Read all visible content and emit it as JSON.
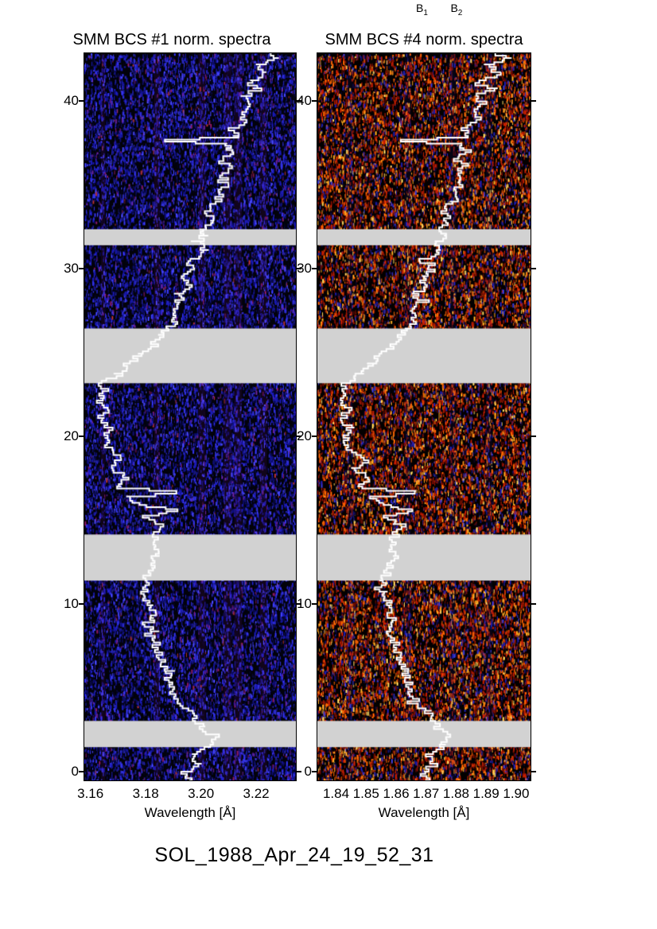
{
  "figure": {
    "caption": "SOL_1988_Apr_24_19_52_31",
    "background": "#ffffff",
    "gap_color": "#d2d2d2",
    "trace_color": "#ffffff"
  },
  "chart_data": [
    {
      "type": "heatmap",
      "title": "SMM BCS #1 norm. spectra",
      "xlabel": "Wavelength [Å]",
      "xlim": [
        3.1575,
        3.2335
      ],
      "ylim": [
        -0.38,
        42.88
      ],
      "xtick_labels": [
        "3.16",
        "3.18",
        "3.20",
        "3.22"
      ],
      "xtick_values": [
        3.16,
        3.18,
        3.2,
        3.22
      ],
      "ytick_labels": [
        "0",
        "10",
        "20",
        "30",
        "40"
      ],
      "ytick_values": [
        0,
        10,
        20,
        30,
        40
      ],
      "data_gaps": [
        [
          1.6,
          3.16
        ],
        [
          11.51,
          14.25
        ],
        [
          23.25,
          26.51
        ],
        [
          31.46,
          32.41
        ]
      ],
      "gap_color": "#d2d2d2",
      "trace_color": "#ffffff",
      "noise": {
        "background": "#02020a",
        "palette": [
          [
            "#1a1ab8",
            0.3
          ],
          [
            "#3434ee",
            0.22
          ],
          [
            "#0d0d70",
            0.18
          ],
          [
            "#04041e",
            0.15
          ],
          [
            "#4848ff",
            0.08
          ],
          [
            "#6a22a0",
            0.04
          ],
          [
            "#8a1860",
            0.02
          ],
          [
            "#b03030",
            0.01
          ]
        ],
        "streak_color": "rgba(130,30,150,0.12)",
        "streak_positions": [
          0.09,
          0.34,
          0.55,
          0.67,
          0.72,
          0.84
        ]
      },
      "trace": [
        [
          -0.38,
          3.196
        ],
        [
          0.14,
          3.1932
        ],
        [
          0.61,
          3.1986
        ],
        [
          1.18,
          3.1966
        ],
        [
          1.75,
          3.2017
        ],
        [
          2.36,
          3.2037
        ],
        [
          2.83,
          3.1995
        ],
        [
          3.16,
          3.198
        ],
        [
          3.77,
          3.1958
        ],
        [
          4.48,
          3.1907
        ],
        [
          5.33,
          3.1884
        ],
        [
          6.13,
          3.1875
        ],
        [
          6.93,
          3.185
        ],
        [
          7.69,
          3.1835
        ],
        [
          8.49,
          3.1815
        ],
        [
          9.29,
          3.1824
        ],
        [
          10.05,
          3.181
        ],
        [
          10.85,
          3.1793
        ],
        [
          11.51,
          3.1782
        ],
        [
          12.26,
          3.181
        ],
        [
          12.97,
          3.183
        ],
        [
          13.63,
          3.1821
        ],
        [
          14.25,
          3.183
        ],
        [
          14.86,
          3.1858
        ],
        [
          15.38,
          3.1801
        ],
        [
          15.75,
          3.19
        ],
        [
          16.13,
          3.177
        ],
        [
          16.51,
          3.1738
        ],
        [
          16.84,
          3.1915
        ],
        [
          17.12,
          3.1696
        ],
        [
          17.64,
          3.1722
        ],
        [
          18.21,
          3.1682
        ],
        [
          18.82,
          3.1699
        ],
        [
          19.43,
          3.1659
        ],
        [
          20.0,
          3.1645
        ],
        [
          20.61,
          3.1662
        ],
        [
          21.18,
          3.1636
        ],
        [
          21.79,
          3.1653
        ],
        [
          22.36,
          3.1628
        ],
        [
          22.92,
          3.1645
        ],
        [
          23.25,
          3.1639
        ],
        [
          23.82,
          3.1696
        ],
        [
          24.43,
          3.1733
        ],
        [
          25.0,
          3.1776
        ],
        [
          25.57,
          3.1824
        ],
        [
          26.13,
          3.185
        ],
        [
          26.51,
          3.1872
        ],
        [
          27.03,
          3.1904
        ],
        [
          27.55,
          3.1887
        ],
        [
          28.07,
          3.1926
        ],
        [
          28.58,
          3.1912
        ],
        [
          29.1,
          3.1949
        ],
        [
          29.62,
          3.1938
        ],
        [
          30.14,
          3.1975
        ],
        [
          30.66,
          3.196
        ],
        [
          31.18,
          3.2
        ],
        [
          31.7,
          3.1986
        ],
        [
          32.03,
          3.202
        ],
        [
          32.4,
          3.2003
        ],
        [
          32.92,
          3.2031
        ],
        [
          33.49,
          3.2022
        ],
        [
          34.06,
          3.2051
        ],
        [
          34.62,
          3.2071
        ],
        [
          35.19,
          3.2085
        ],
        [
          35.75,
          3.2074
        ],
        [
          36.32,
          3.21
        ],
        [
          36.75,
          3.2082
        ],
        [
          37.12,
          3.2108
        ],
        [
          37.5,
          3.2091
        ],
        [
          37.74,
          3.1872
        ],
        [
          37.97,
          3.2125
        ],
        [
          38.44,
          3.2105
        ],
        [
          38.92,
          3.2153
        ],
        [
          39.39,
          3.213
        ],
        [
          39.86,
          3.2173
        ],
        [
          40.33,
          3.2147
        ],
        [
          40.8,
          3.2196
        ],
        [
          41.27,
          3.2167
        ],
        [
          41.75,
          3.2225
        ],
        [
          42.22,
          3.219
        ],
        [
          42.59,
          3.2264
        ],
        [
          42.88,
          3.223
        ]
      ]
    },
    {
      "type": "heatmap",
      "title": "SMM BCS #4 norm. spectra",
      "xlabel": "Wavelength [Å]",
      "xlim": [
        1.8335,
        1.904
      ],
      "ylim": [
        -0.38,
        42.88
      ],
      "xtick_labels": [
        "1.84",
        "1.85",
        "1.86",
        "1.87",
        "1.88",
        "1.89",
        "1.90"
      ],
      "xtick_values": [
        1.84,
        1.85,
        1.86,
        1.87,
        1.88,
        1.89,
        1.9
      ],
      "ytick_labels": [
        "0",
        "10",
        "20",
        "30",
        "40"
      ],
      "ytick_values": [
        0,
        10,
        20,
        30,
        40
      ],
      "data_gaps": [
        [
          1.6,
          3.16
        ],
        [
          11.51,
          14.25
        ],
        [
          23.25,
          26.51
        ],
        [
          31.46,
          32.41
        ]
      ],
      "gap_color": "#d2d2d2",
      "trace_color": "#ffffff",
      "line_labels": [
        {
          "base": "B",
          "sub": "1",
          "wavelength": 1.8685
        },
        {
          "base": "B",
          "sub": "2",
          "wavelength": 1.88
        }
      ],
      "noise": {
        "background": "#030000",
        "palette": [
          [
            "#c81e00",
            0.26
          ],
          [
            "#ff6600",
            0.18
          ],
          [
            "#7a0c00",
            0.16
          ],
          [
            "#1e1eb4",
            0.12
          ],
          [
            "#ffaa22",
            0.1
          ],
          [
            "#10083c",
            0.08
          ],
          [
            "#3c3cdc",
            0.06
          ],
          [
            "#ffd860",
            0.04
          ]
        ],
        "streak_color": "rgba(40,40,190,0.10)",
        "streak_positions": [
          0.15,
          0.42,
          0.63,
          0.8
        ]
      },
      "trace": [
        [
          -0.38,
          1.8702
        ],
        [
          0.14,
          1.8678
        ],
        [
          0.61,
          1.8725
        ],
        [
          1.18,
          1.8707
        ],
        [
          1.75,
          1.8751
        ],
        [
          2.36,
          1.8769
        ],
        [
          2.83,
          1.8732
        ],
        [
          3.16,
          1.8719
        ],
        [
          3.77,
          1.87
        ],
        [
          4.48,
          1.8656
        ],
        [
          5.33,
          1.8637
        ],
        [
          6.13,
          1.8629
        ],
        [
          6.93,
          1.8607
        ],
        [
          7.69,
          1.8594
        ],
        [
          8.49,
          1.8577
        ],
        [
          9.29,
          1.8585
        ],
        [
          10.05,
          1.8573
        ],
        [
          10.85,
          1.8558
        ],
        [
          11.51,
          1.8548
        ],
        [
          12.26,
          1.8573
        ],
        [
          12.97,
          1.859
        ],
        [
          13.63,
          1.8582
        ],
        [
          14.25,
          1.859
        ],
        [
          14.86,
          1.8614
        ],
        [
          15.38,
          1.8565
        ],
        [
          15.75,
          1.865
        ],
        [
          16.13,
          1.8538
        ],
        [
          16.51,
          1.851
        ],
        [
          16.84,
          1.8663
        ],
        [
          17.12,
          1.8474
        ],
        [
          17.64,
          1.8497
        ],
        [
          18.21,
          1.8462
        ],
        [
          18.82,
          1.8477
        ],
        [
          19.43,
          1.8442
        ],
        [
          20.0,
          1.843
        ],
        [
          20.61,
          1.8445
        ],
        [
          21.18,
          1.8422
        ],
        [
          21.79,
          1.8437
        ],
        [
          22.36,
          1.8415
        ],
        [
          22.92,
          1.843
        ],
        [
          23.25,
          1.8425
        ],
        [
          23.82,
          1.8474
        ],
        [
          24.43,
          1.8506
        ],
        [
          25.0,
          1.8543
        ],
        [
          25.57,
          1.8585
        ],
        [
          26.13,
          1.8607
        ],
        [
          26.51,
          1.8626
        ],
        [
          27.03,
          1.8654
        ],
        [
          27.55,
          1.8639
        ],
        [
          28.07,
          1.8673
        ],
        [
          28.58,
          1.8661
        ],
        [
          29.1,
          1.8693
        ],
        [
          29.62,
          1.8683
        ],
        [
          30.14,
          1.8715
        ],
        [
          30.66,
          1.8702
        ],
        [
          31.18,
          1.8737
        ],
        [
          31.7,
          1.8725
        ],
        [
          32.03,
          1.8754
        ],
        [
          32.4,
          1.8739
        ],
        [
          32.92,
          1.8764
        ],
        [
          33.49,
          1.8756
        ],
        [
          34.06,
          1.8781
        ],
        [
          34.62,
          1.8798
        ],
        [
          35.19,
          1.881
        ],
        [
          35.75,
          1.8801
        ],
        [
          36.32,
          1.8823
        ],
        [
          36.75,
          1.8808
        ],
        [
          37.12,
          1.883
        ],
        [
          37.5,
          1.8815
        ],
        [
          37.74,
          1.8626
        ],
        [
          37.97,
          1.8845
        ],
        [
          38.44,
          1.8827
        ],
        [
          38.92,
          1.8869
        ],
        [
          39.39,
          1.8849
        ],
        [
          39.86,
          1.8886
        ],
        [
          40.33,
          1.8864
        ],
        [
          40.8,
          1.8906
        ],
        [
          41.27,
          1.8881
        ],
        [
          41.75,
          1.8931
        ],
        [
          42.22,
          1.8901
        ],
        [
          42.59,
          1.8965
        ],
        [
          42.88,
          1.8935
        ]
      ]
    }
  ]
}
